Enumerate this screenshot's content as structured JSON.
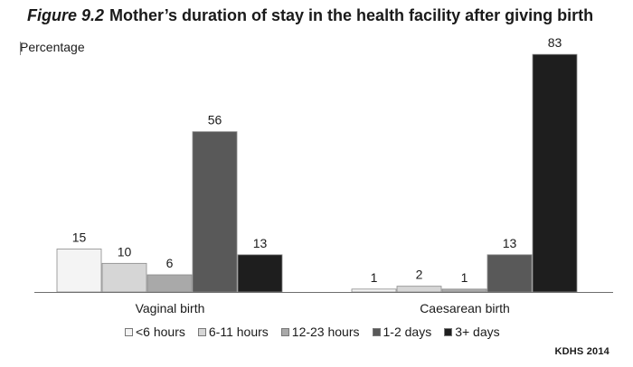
{
  "figure": {
    "number": "Figure 9.2",
    "title": "Mother’s duration of stay in the health facility after giving birth",
    "source": "KDHS 2014"
  },
  "chart_data": {
    "type": "bar",
    "title": "Mother’s duration of stay in the health facility after giving birth",
    "ylabel": "Percentage",
    "xlabel": "",
    "categories": [
      "Vaginal birth",
      "Caesarean birth"
    ],
    "series": [
      {
        "name": "<6 hours",
        "color": "#f4f4f4",
        "values": [
          15,
          1
        ]
      },
      {
        "name": "6-11 hours",
        "color": "#d6d6d6",
        "values": [
          10,
          2
        ]
      },
      {
        "name": "12-23 hours",
        "color": "#a9a9a9",
        "values": [
          6,
          1
        ]
      },
      {
        "name": "1-2 days",
        "color": "#595959",
        "values": [
          56,
          13
        ]
      },
      {
        "name": "3+ days",
        "color": "#1e1e1e",
        "values": [
          13,
          83
        ]
      }
    ],
    "ylim": [
      0,
      90
    ],
    "grid": false,
    "data_labels": true,
    "legend_position": "bottom"
  }
}
